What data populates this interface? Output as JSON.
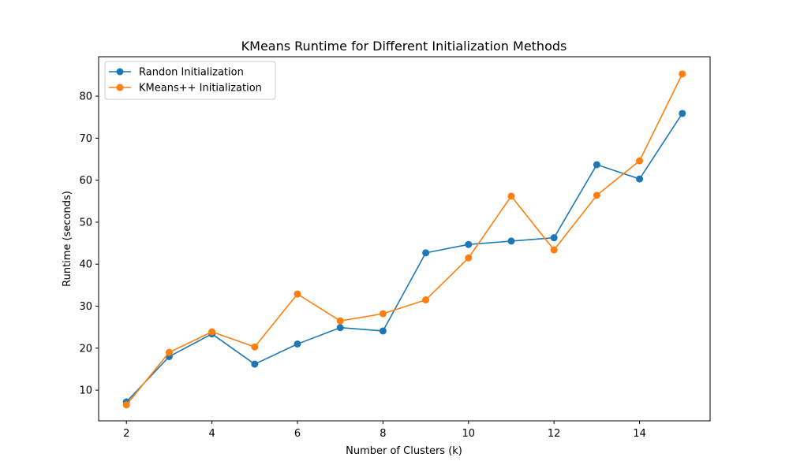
{
  "chart_data": {
    "type": "line",
    "title": "KMeans Runtime for Different Initialization Methods",
    "xlabel": "Number of Clusters (k)",
    "ylabel": "Runtime (seconds)",
    "x": [
      2,
      3,
      4,
      5,
      6,
      7,
      8,
      9,
      10,
      11,
      12,
      13,
      14,
      15
    ],
    "xlim": [
      1.35,
      15.65
    ],
    "ylim": [
      2.7,
      89.4
    ],
    "xticks": [
      2,
      4,
      6,
      8,
      10,
      12,
      14
    ],
    "yticks": [
      10,
      20,
      30,
      40,
      50,
      60,
      70,
      80
    ],
    "grid": false,
    "legend_position": "top-left",
    "series": [
      {
        "name": "Randon Initialization",
        "color": "#1f77b4",
        "marker": "circle",
        "values": [
          7.2,
          18.0,
          23.4,
          16.2,
          21.0,
          24.9,
          24.1,
          42.7,
          44.7,
          45.5,
          46.3,
          63.7,
          60.3,
          75.9
        ]
      },
      {
        "name": "KMeans++ Initialization",
        "color": "#ff7f0e",
        "marker": "circle",
        "values": [
          6.5,
          19.0,
          23.9,
          20.3,
          32.9,
          26.5,
          28.2,
          31.5,
          41.5,
          56.2,
          43.4,
          56.4,
          64.6,
          85.3
        ]
      }
    ]
  }
}
